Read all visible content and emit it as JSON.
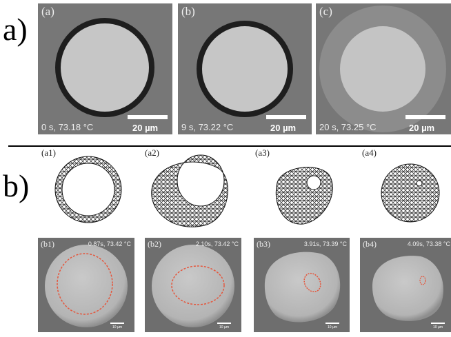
{
  "figure_labels": [
    "a)",
    "b)"
  ],
  "top_panels": [
    {
      "label": "(a)",
      "caption": "0 s, 73.18 °C",
      "scale_bar": "20 µm"
    },
    {
      "label": "(b)",
      "caption": "9 s, 73.22 °C",
      "scale_bar": "20 µm"
    },
    {
      "label": "(c)",
      "caption": "20 s, 73.25 °C",
      "scale_bar": "20 µm"
    }
  ],
  "mesh_labels": [
    "(a1)",
    "(a2)",
    "(a3)",
    "(a4)"
  ],
  "bottom_panels": [
    {
      "label": "(b1)",
      "caption": "0.87s, 73.42 °C",
      "scale_bar": "10 µm"
    },
    {
      "label": "(b2)",
      "caption": "2.10s, 73.42 °C",
      "scale_bar": "10 µm"
    },
    {
      "label": "(b3)",
      "caption": "3.91s, 73.39 °C",
      "scale_bar": "10 µm"
    },
    {
      "label": "(b4)",
      "caption": "4.09s, 73.38 °C",
      "scale_bar": "10 µm"
    }
  ]
}
